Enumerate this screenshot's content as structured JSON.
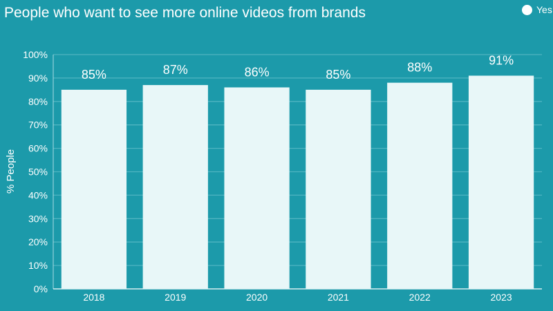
{
  "chart_data": {
    "type": "bar",
    "title": "People who want to see more online videos from brands",
    "xlabel": "",
    "ylabel": "% People",
    "categories": [
      "2018",
      "2019",
      "2020",
      "2021",
      "2022",
      "2023"
    ],
    "series": [
      {
        "name": "Yes",
        "values": [
          85,
          87,
          86,
          85,
          88,
          91
        ]
      }
    ],
    "data_labels": [
      "85%",
      "87%",
      "86%",
      "85%",
      "88%",
      "91%"
    ],
    "ylim": [
      0,
      100
    ],
    "yticks": [
      0,
      10,
      20,
      30,
      40,
      50,
      60,
      70,
      80,
      90,
      100
    ],
    "ytick_labels": [
      "0%",
      "10%",
      "20%",
      "30%",
      "40%",
      "50%",
      "60%",
      "70%",
      "80%",
      "90%",
      "100%"
    ],
    "grid": true,
    "legend_position": "top-right",
    "colors": {
      "background": "#1c9aaa",
      "bar": "#e8f7f8",
      "gridline": "#4fb4c1",
      "text": "#ffffff"
    }
  }
}
